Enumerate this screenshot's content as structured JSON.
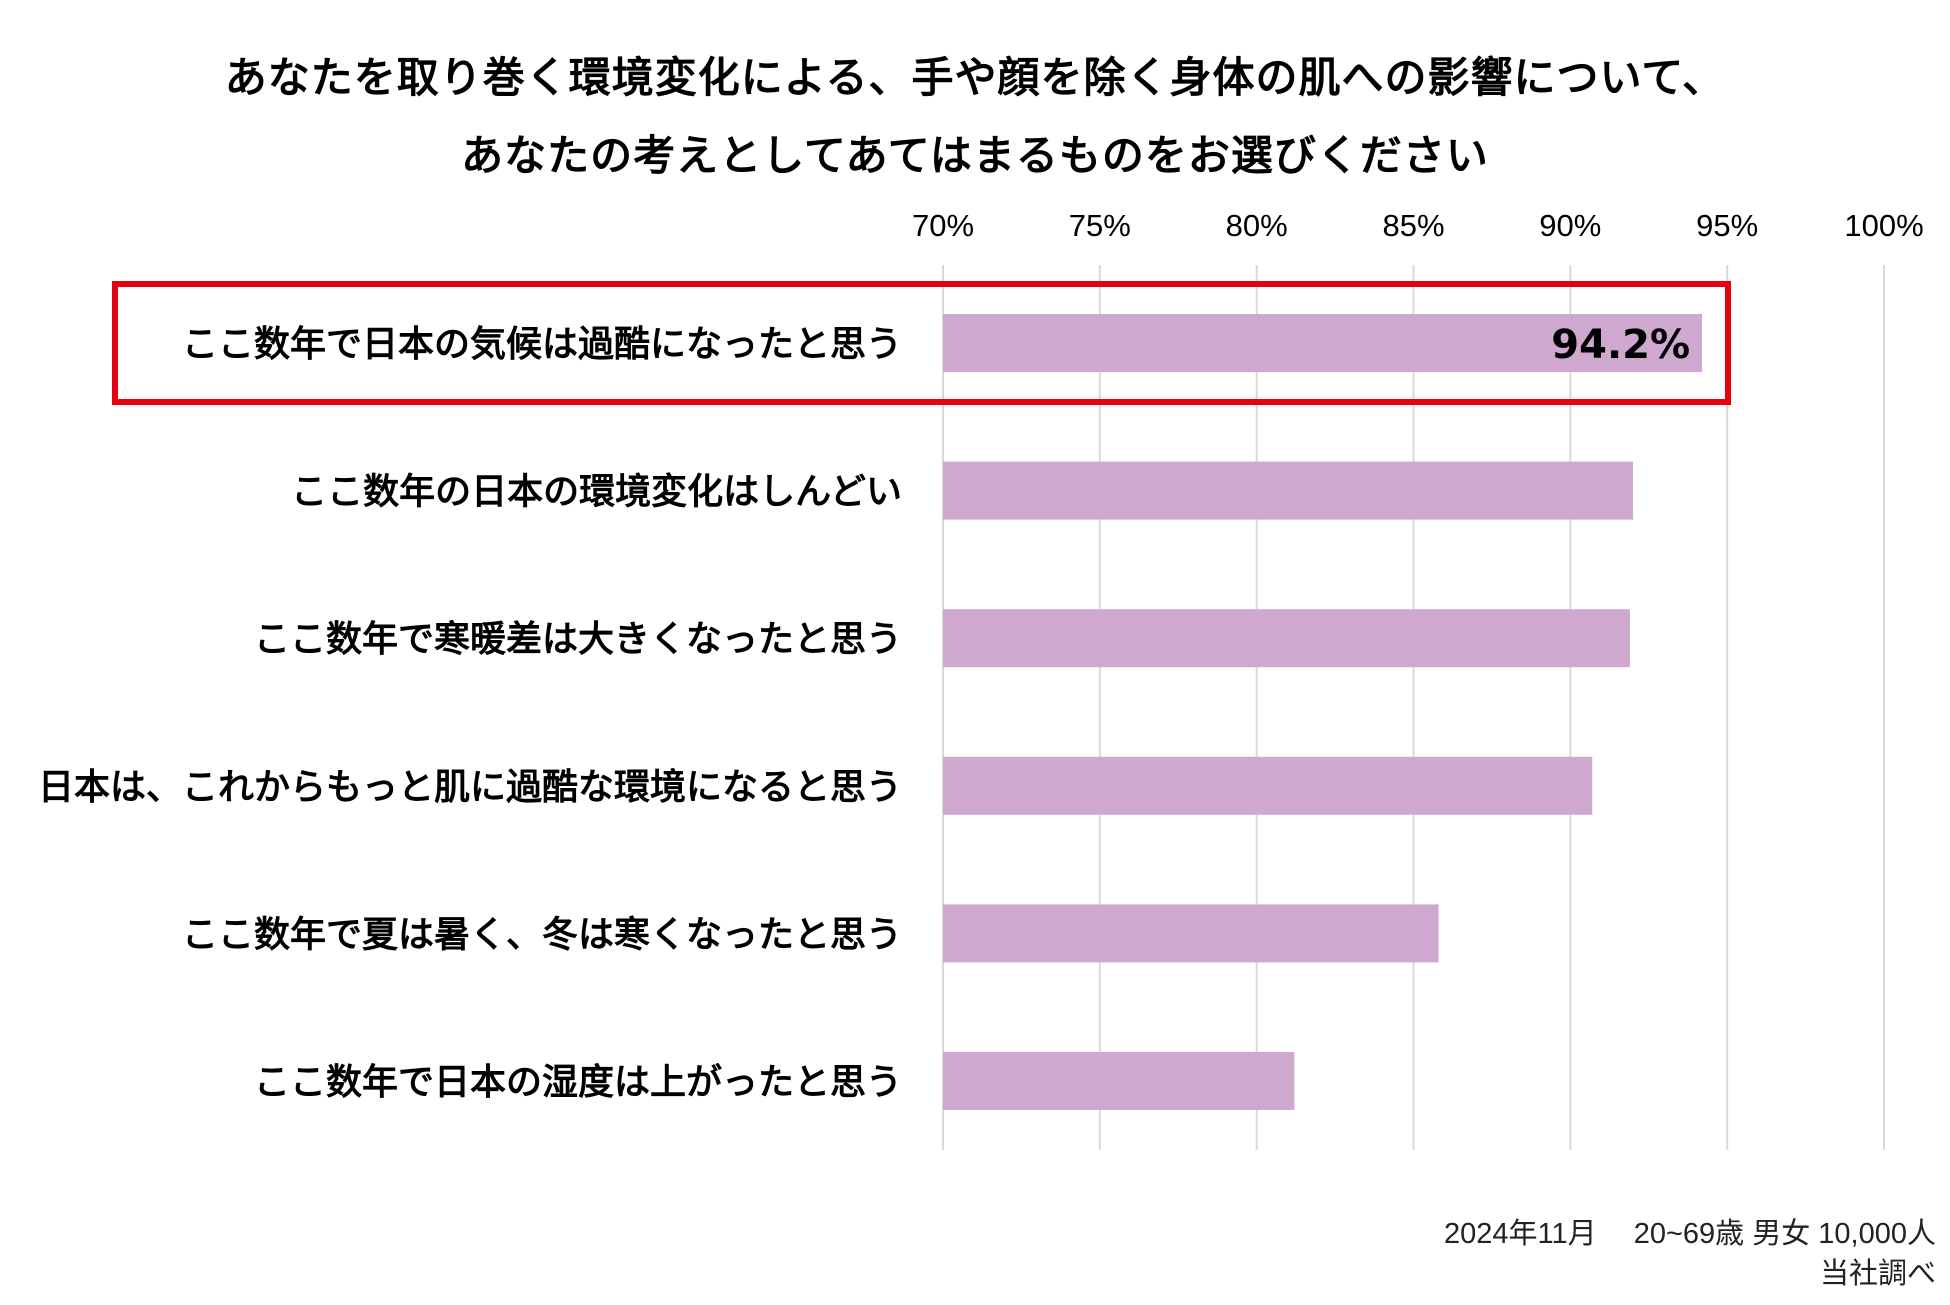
{
  "chart_data": {
    "type": "bar",
    "orientation": "horizontal",
    "title_lines": [
      "あなたを取り巻く環境変化による、手や顔を除く身体の肌への影響について、",
      "あなたの考えとしてあてはまるものをお選びください"
    ],
    "categories": [
      "ここ数年で日本の気候は過酷になったと思う",
      "ここ数年の日本の環境変化はしんどい",
      "ここ数年で寒暖差は大きくなったと思う",
      "日本は、これからもっと肌に過酷な環境になると思う",
      "ここ数年で夏は暑く、冬は寒くなったと思う",
      "ここ数年で日本の湿度は上がったと思う"
    ],
    "values": [
      94.2,
      92.0,
      91.9,
      90.7,
      85.8,
      81.2
    ],
    "xlim": [
      70,
      100
    ],
    "ticks": [
      70,
      75,
      80,
      85,
      90,
      95,
      100
    ],
    "tick_labels": [
      "70%",
      "75%",
      "80%",
      "85%",
      "90%",
      "95%",
      "100%"
    ],
    "axis_position": "top",
    "grid": true,
    "data_labels": [
      {
        "index": 0,
        "text": "94.2%"
      }
    ],
    "highlight_index": 0,
    "colors": {
      "bar": "#cfa8d0",
      "grid": "#d9d9d9",
      "highlight": "#e60012"
    }
  },
  "footnote": {
    "line1": "2024年11月　 20~69歳 男女 10,000人",
    "line2": "当社調べ"
  }
}
